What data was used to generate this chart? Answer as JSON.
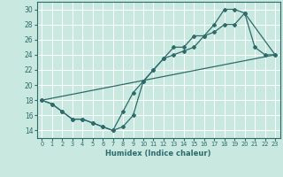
{
  "xlabel": "Humidex (Indice chaleur)",
  "xlim": [
    -0.5,
    23.5
  ],
  "ylim": [
    13.0,
    31.0
  ],
  "yticks": [
    14,
    16,
    18,
    20,
    22,
    24,
    26,
    28,
    30
  ],
  "xticks": [
    0,
    1,
    2,
    3,
    4,
    5,
    6,
    7,
    8,
    9,
    10,
    11,
    12,
    13,
    14,
    15,
    16,
    17,
    18,
    19,
    20,
    21,
    22,
    23
  ],
  "bg_color": "#c8e8e0",
  "grid_color": "#ffffff",
  "line_color": "#2d6b6b",
  "line1_x": [
    0,
    1,
    2,
    3,
    4,
    5,
    6,
    7,
    8,
    9,
    10,
    11,
    12,
    13,
    14,
    15,
    16,
    17,
    18,
    19,
    20,
    21,
    22,
    23
  ],
  "line1_y": [
    18,
    17.5,
    16.5,
    15.5,
    15.5,
    15,
    14.5,
    14,
    16.5,
    19,
    20.5,
    22,
    23.5,
    25,
    25,
    26.5,
    26.5,
    28,
    30,
    30,
    29.5,
    25,
    24,
    24
  ],
  "line2_x": [
    0,
    1,
    2,
    3,
    4,
    5,
    6,
    7,
    8,
    9,
    10,
    11,
    12,
    13,
    14,
    15,
    16,
    17,
    18,
    19,
    20,
    23
  ],
  "line2_y": [
    18,
    17.5,
    16.5,
    15.5,
    15.5,
    15,
    14.5,
    14,
    14.5,
    16,
    20.5,
    22,
    23.5,
    24,
    24.5,
    25,
    26.5,
    27,
    28,
    28,
    29.5,
    24
  ],
  "line3_x": [
    0,
    23
  ],
  "line3_y": [
    18,
    24
  ]
}
